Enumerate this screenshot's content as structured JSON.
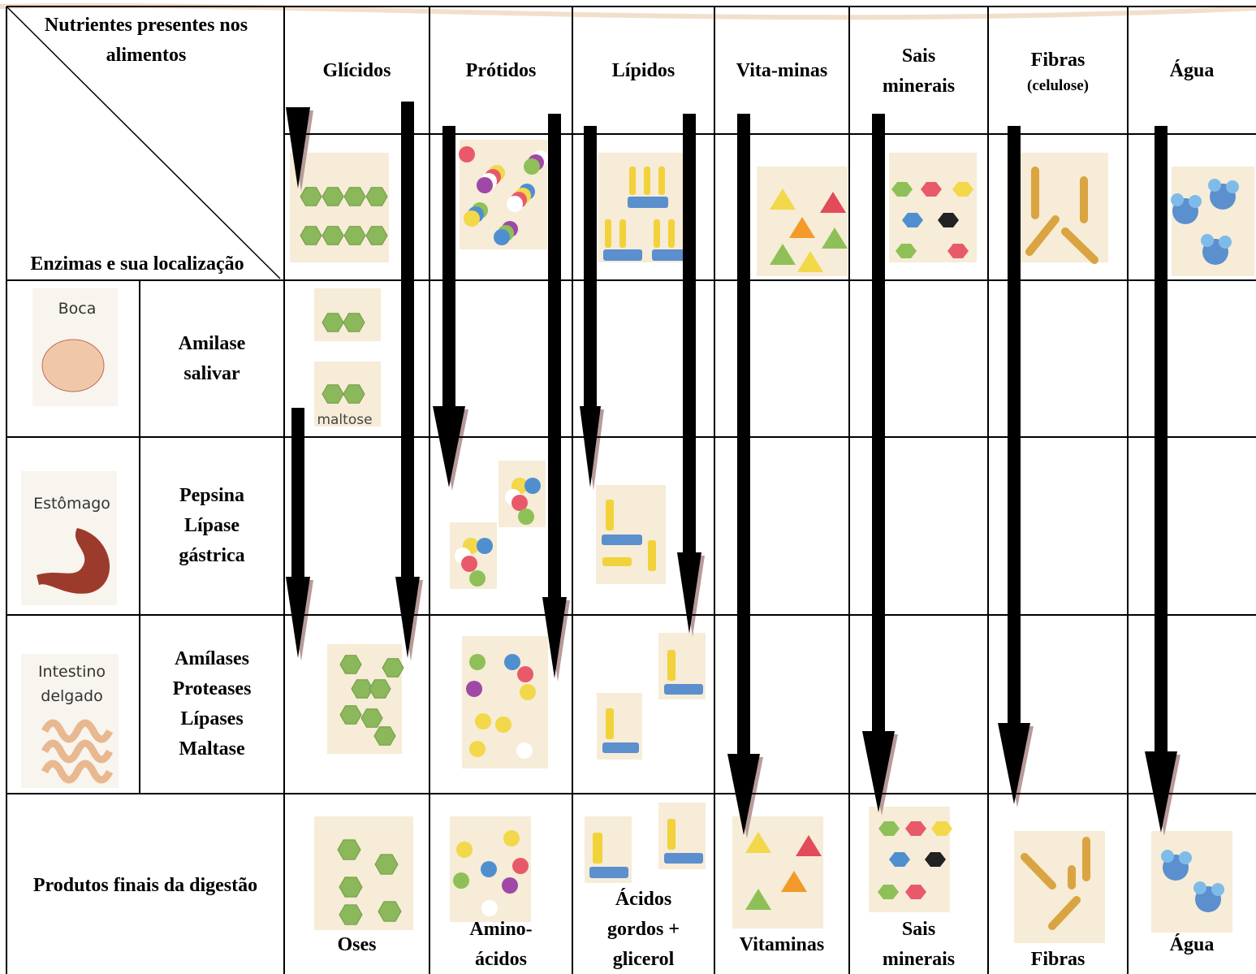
{
  "table": {
    "corner": {
      "top": [
        "Nutrientes presentes nos",
        "alimentos"
      ],
      "bottom": "Enzimas e sua localização"
    },
    "columns": [
      {
        "lines": [
          "Glícidos"
        ]
      },
      {
        "lines": [
          "Prótidos"
        ]
      },
      {
        "lines": [
          "Lípidos"
        ]
      },
      {
        "lines": [
          "Vita-minas"
        ]
      },
      {
        "lines": [
          "Sais",
          "minerais"
        ]
      },
      {
        "lines": [
          "Fibras"
        ],
        "note": "(celulose)"
      },
      {
        "lines": [
          "Água"
        ]
      }
    ],
    "rows": [
      {
        "organ": [
          "Boca"
        ],
        "enzymes": [
          "Amilase",
          "salivar"
        ]
      },
      {
        "organ": [
          "Estômago"
        ],
        "enzymes": [
          "Pepsina",
          "Lípase",
          "gástrica"
        ]
      },
      {
        "organ": [
          "Intestino",
          "delgado"
        ],
        "enzymes": [
          "Amílases",
          "Proteases",
          "Lípases",
          "Maltase"
        ]
      }
    ],
    "image_label": "maltose",
    "products": {
      "label": "Produtos finais da digestão",
      "items": [
        [
          "Oses"
        ],
        [
          "Amino-",
          "ácidos"
        ],
        [
          "Ácidos",
          "gordos +",
          "glicerol"
        ],
        [
          "Vitaminas"
        ],
        [
          "Sais",
          "minerais"
        ],
        [
          "Fibras"
        ],
        [
          "Água"
        ]
      ]
    }
  }
}
